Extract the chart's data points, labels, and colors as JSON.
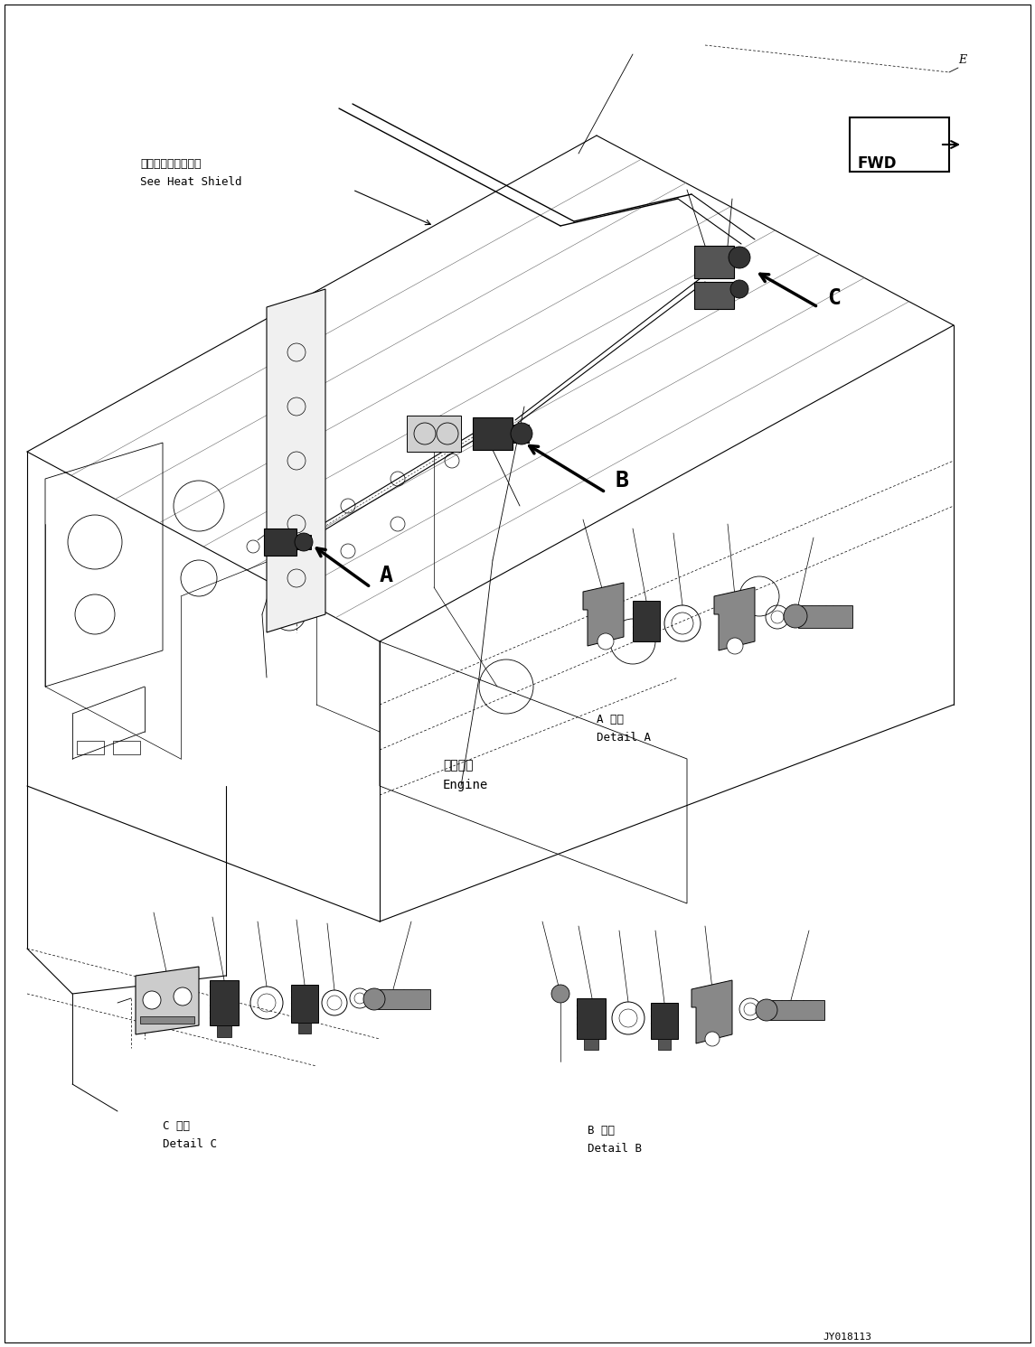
{
  "bg_color": "#ffffff",
  "fig_width": 11.45,
  "fig_height": 14.91,
  "dpi": 100,
  "text": {
    "heat_shield_jp": "ヒートシールド参照",
    "heat_shield_en": "See Heat Shield",
    "engine_jp": "エンジン",
    "engine_en": "Engine",
    "detail_a_jp": "A 詳細",
    "detail_a_en": "Detail A",
    "detail_b_jp": "B 詳細",
    "detail_b_en": "Detail B",
    "detail_c_jp": "C 詳細",
    "detail_c_en": "Detail C",
    "fwd": "FWD",
    "e_label": "E",
    "watermark": "JY018113"
  },
  "colors": {
    "black": "#000000",
    "dark_gray": "#333333",
    "mid_gray": "#888888",
    "light_gray": "#cccccc",
    "white": "#ffffff"
  }
}
